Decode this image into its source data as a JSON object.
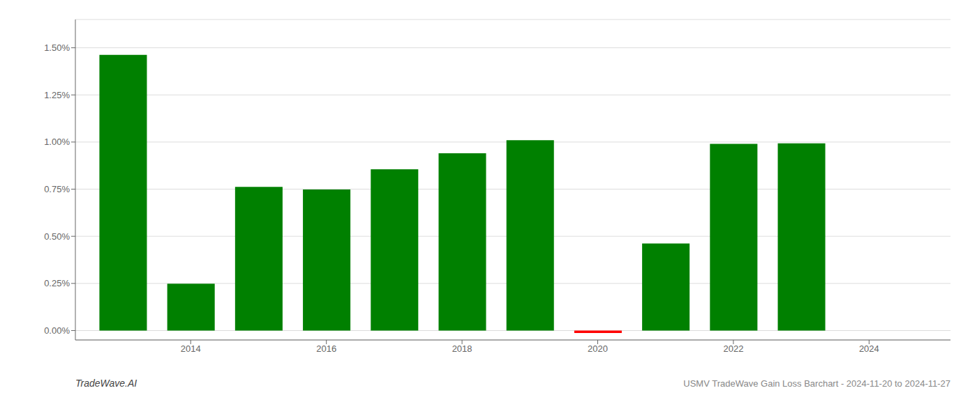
{
  "chart_data": {
    "type": "bar",
    "x": [
      2013,
      2014,
      2015,
      2016,
      2017,
      2018,
      2019,
      2020,
      2021,
      2022,
      2023,
      2024
    ],
    "values": [
      0.01462,
      0.00248,
      0.00762,
      0.00748,
      0.00855,
      0.0094,
      0.0101,
      -0.00013,
      0.00462,
      0.0099,
      0.00993,
      0.0
    ],
    "colors": [
      "#008000",
      "#008000",
      "#008000",
      "#008000",
      "#008000",
      "#008000",
      "#008000",
      "#ff0000",
      "#008000",
      "#008000",
      "#008000",
      "#008000"
    ],
    "xlim": [
      2012.3,
      2025.2
    ],
    "ylim": [
      -0.0005,
      0.0165
    ],
    "xticks": [
      2014,
      2016,
      2018,
      2020,
      2022,
      2024
    ],
    "yticks": [
      {
        "value": 0.0,
        "label": "0.00%"
      },
      {
        "value": 0.0025,
        "label": "0.25%"
      },
      {
        "value": 0.005,
        "label": "0.50%"
      },
      {
        "value": 0.0075,
        "label": "0.75%"
      },
      {
        "value": 0.01,
        "label": "1.00%"
      },
      {
        "value": 0.0125,
        "label": "1.25%"
      },
      {
        "value": 0.015,
        "label": "1.50%"
      }
    ],
    "grid": true,
    "annotations": [
      "TradeWave.AI",
      "USMV TradeWave Gain Loss Barchart - 2024-11-20 to 2024-11-27"
    ]
  }
}
